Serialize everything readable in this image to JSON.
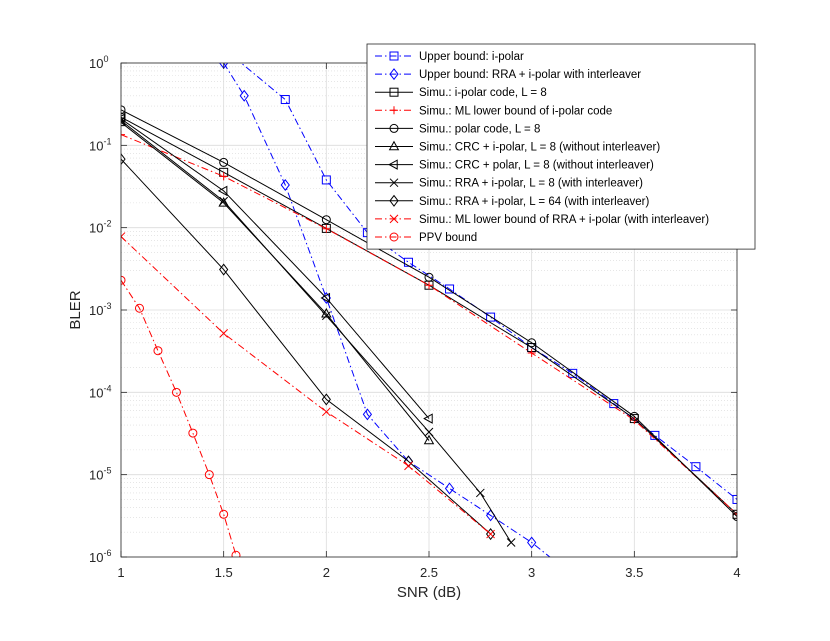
{
  "chart_data": {
    "type": "line",
    "xlabel": "SNR (dB)",
    "ylabel": "BLER",
    "xlim": [
      1,
      4
    ],
    "ylim": [
      1e-06,
      1
    ],
    "yscale": "log",
    "grid": true,
    "minor_grid": true,
    "legend_position": "top-right",
    "x_ticks": [
      {
        "value": 1,
        "label": "1"
      },
      {
        "value": 1.5,
        "label": "1.5"
      },
      {
        "value": 2,
        "label": "2"
      },
      {
        "value": 2.5,
        "label": "2.5"
      },
      {
        "value": 3,
        "label": "3"
      },
      {
        "value": 3.5,
        "label": "3.5"
      },
      {
        "value": 4,
        "label": "4"
      }
    ],
    "y_ticks": [
      {
        "value": 1,
        "mantissa": "10",
        "exp": "0"
      },
      {
        "value": 0.1,
        "mantissa": "10",
        "exp": "-1"
      },
      {
        "value": 0.01,
        "mantissa": "10",
        "exp": "-2"
      },
      {
        "value": 0.001,
        "mantissa": "10",
        "exp": "-3"
      },
      {
        "value": 0.0001,
        "mantissa": "10",
        "exp": "-4"
      },
      {
        "value": 1e-05,
        "mantissa": "10",
        "exp": "-5"
      },
      {
        "value": 1e-06,
        "mantissa": "10",
        "exp": "-6"
      }
    ],
    "series": [
      {
        "name": "Upper bound: i-polar",
        "color": "#0000ff",
        "dash": "dashdot",
        "marker": "square",
        "x": [
          1.5,
          1.8,
          2.0,
          2.2,
          2.4,
          2.6,
          2.8,
          3.0,
          3.2,
          3.4,
          3.6,
          3.8,
          4.0
        ],
        "y": [
          1.5,
          0.36,
          0.038,
          0.0087,
          0.0038,
          0.0018,
          0.00082,
          0.00035,
          0.00017,
          7.3e-05,
          3e-05,
          1.25e-05,
          5e-06
        ]
      },
      {
        "name": "Upper bound: RRA + i-polar with interleaver",
        "color": "#0000ff",
        "dash": "dashdot",
        "marker": "diamond",
        "x": [
          1.5,
          1.6,
          1.8,
          2.0,
          2.2,
          2.4,
          2.6,
          2.8,
          3.0,
          3.2
        ],
        "y": [
          1.0,
          0.4,
          0.033,
          0.0014,
          5.4e-05,
          1.45e-05,
          6.8e-06,
          3.2e-06,
          1.5e-06,
          6e-07
        ]
      },
      {
        "name": "Simu.: i-polar code, L = 8",
        "color": "#000000",
        "dash": "solid",
        "marker": "square",
        "x": [
          1,
          1.5,
          2,
          2.5,
          3,
          3.5,
          4
        ],
        "y": [
          0.22,
          0.047,
          0.0098,
          0.002,
          0.00035,
          4.8e-05,
          3.3e-06
        ]
      },
      {
        "name": "Simu.: ML lower bound of i-polar code",
        "color": "#ff0000",
        "dash": "dashdot",
        "marker": "plus",
        "x": [
          1,
          1.5,
          2,
          2.5,
          3,
          3.5,
          4
        ],
        "y": [
          0.135,
          0.042,
          0.0097,
          0.002,
          0.0003,
          4.6e-05,
          3.3e-06
        ]
      },
      {
        "name": "Simu.: polar code, L = 8",
        "color": "#000000",
        "dash": "solid",
        "marker": "circle",
        "x": [
          1,
          1.5,
          2,
          2.5,
          3,
          3.5,
          4
        ],
        "y": [
          0.27,
          0.062,
          0.0125,
          0.0025,
          0.0004,
          5.1e-05,
          3.1e-06
        ]
      },
      {
        "name": "Simu.: CRC + i-polar, L = 8 (without interleaver)",
        "color": "#000000",
        "dash": "solid",
        "marker": "triangle-up",
        "x": [
          1,
          1.5,
          2,
          2.5
        ],
        "y": [
          0.19,
          0.02,
          0.0009,
          2.6e-05
        ]
      },
      {
        "name": "Simu.: CRC + polar, L = 8 (without interleaver)",
        "color": "#000000",
        "dash": "solid",
        "marker": "triangle-left",
        "x": [
          1,
          1.5,
          2,
          2.5
        ],
        "y": [
          0.21,
          0.028,
          0.0014,
          4.8e-05
        ]
      },
      {
        "name": "Simu.: RRA + i-polar, L = 8 (with interleaver)",
        "color": "#000000",
        "dash": "solid",
        "marker": "x",
        "x": [
          1,
          1.5,
          2,
          2.5,
          2.75,
          2.9
        ],
        "y": [
          0.2,
          0.021,
          0.00085,
          3.3e-05,
          6e-06,
          1.5e-06
        ]
      },
      {
        "name": "Simu.: RRA + i-polar, L = 64 (with interleaver)",
        "color": "#000000",
        "dash": "solid",
        "marker": "diamond",
        "x": [
          1,
          1.5,
          2,
          2.4,
          2.8
        ],
        "y": [
          0.068,
          0.0031,
          8.2e-05,
          1.45e-05,
          1.9e-06
        ]
      },
      {
        "name": "Simu.: ML lower bound of RRA +  i-polar (with interleaver)",
        "color": "#ff0000",
        "dash": "dashdot",
        "marker": "x",
        "x": [
          1,
          1.5,
          2,
          2.4,
          2.8
        ],
        "y": [
          0.0078,
          0.00052,
          5.8e-05,
          1.28e-05,
          1.9e-06
        ]
      },
      {
        "name": "PPV bound",
        "color": "#ff0000",
        "dash": "dashdot",
        "marker": "circle",
        "x": [
          1,
          1.09,
          1.18,
          1.27,
          1.35,
          1.43,
          1.5,
          1.56
        ],
        "y": [
          0.0023,
          0.00105,
          0.00032,
          0.0001,
          3.2e-05,
          1e-05,
          3.3e-06,
          1.05e-06
        ]
      }
    ]
  }
}
